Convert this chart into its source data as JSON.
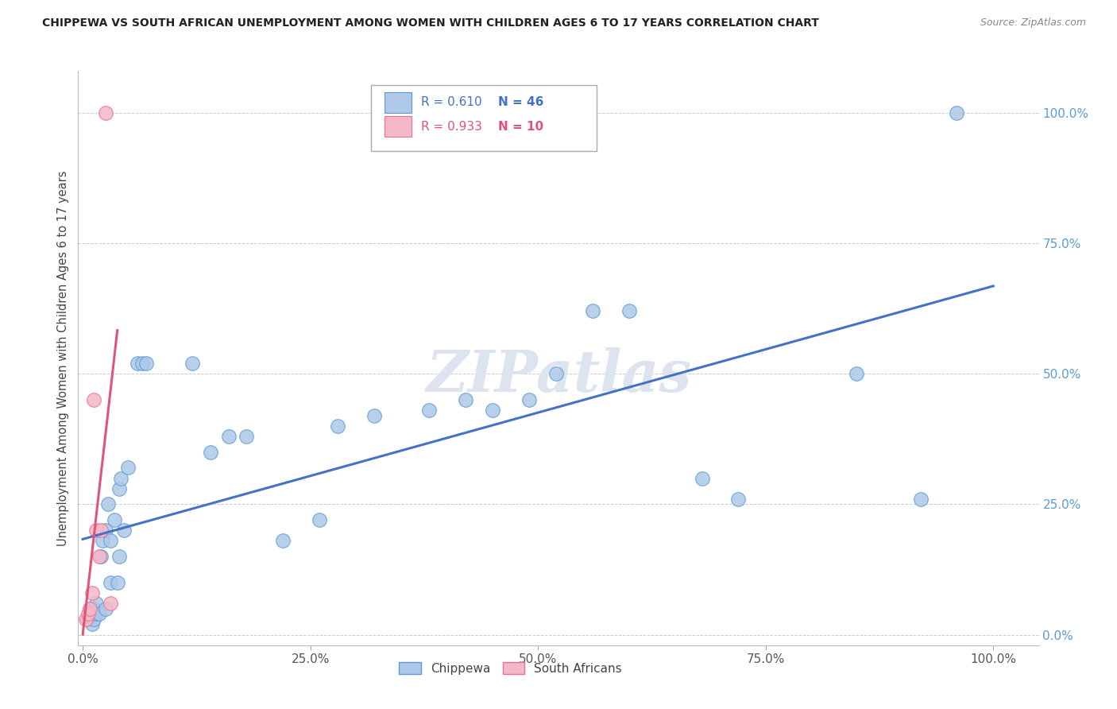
{
  "title": "CHIPPEWA VS SOUTH AFRICAN UNEMPLOYMENT AMONG WOMEN WITH CHILDREN AGES 6 TO 17 YEARS CORRELATION CHART",
  "source": "Source: ZipAtlas.com",
  "ylabel": "Unemployment Among Women with Children Ages 6 to 17 years",
  "legend_label1": "Chippewa",
  "legend_label2": "South Africans",
  "r1": 0.61,
  "n1": 46,
  "r2": 0.933,
  "n2": 10,
  "color_blue_fill": "#adc8e8",
  "color_blue_edge": "#5b9bd5",
  "color_blue_line": "#4472c4",
  "color_pink_fill": "#f4b8c8",
  "color_pink_edge": "#e87090",
  "color_pink_line": "#e05575",
  "chippewa_x": [
    0.005,
    0.008,
    0.01,
    0.01,
    0.012,
    0.013,
    0.015,
    0.015,
    0.018,
    0.02,
    0.022,
    0.025,
    0.025,
    0.028,
    0.03,
    0.03,
    0.035,
    0.038,
    0.04,
    0.04,
    0.042,
    0.045,
    0.05,
    0.06,
    0.065,
    0.07,
    0.12,
    0.14,
    0.16,
    0.18,
    0.22,
    0.26,
    0.28,
    0.32,
    0.38,
    0.42,
    0.45,
    0.49,
    0.52,
    0.56,
    0.6,
    0.68,
    0.72,
    0.85,
    0.92,
    0.96
  ],
  "chippewa_y": [
    0.03,
    0.05,
    0.02,
    0.04,
    0.03,
    0.05,
    0.04,
    0.06,
    0.04,
    0.15,
    0.18,
    0.2,
    0.05,
    0.25,
    0.1,
    0.18,
    0.22,
    0.1,
    0.28,
    0.15,
    0.3,
    0.2,
    0.32,
    0.52,
    0.52,
    0.52,
    0.52,
    0.35,
    0.38,
    0.38,
    0.18,
    0.22,
    0.4,
    0.42,
    0.43,
    0.45,
    0.43,
    0.45,
    0.5,
    0.62,
    0.62,
    0.3,
    0.26,
    0.5,
    0.26,
    1.0
  ],
  "sa_x": [
    0.003,
    0.006,
    0.008,
    0.01,
    0.012,
    0.015,
    0.018,
    0.02,
    0.025,
    0.03
  ],
  "sa_y": [
    0.03,
    0.04,
    0.05,
    0.08,
    0.45,
    0.2,
    0.15,
    0.2,
    1.0,
    0.06
  ],
  "xlim": [
    -0.005,
    1.05
  ],
  "ylim": [
    -0.02,
    1.08
  ],
  "xtick_values": [
    0.0,
    0.25,
    0.5,
    0.75,
    1.0
  ],
  "xtick_labels": [
    "0.0%",
    "25.0%",
    "50.0%",
    "75.0%",
    "100.0%"
  ],
  "ytick_values": [
    0.0,
    0.25,
    0.5,
    0.75,
    1.0
  ],
  "ytick_labels": [
    "0.0%",
    "25.0%",
    "50.0%",
    "75.0%",
    "100.0%"
  ],
  "watermark": "ZIPatlas",
  "bg_color": "#ffffff",
  "grid_color": "#cccccc",
  "ytick_color": "#5b9bd5",
  "xtick_color": "#555555"
}
